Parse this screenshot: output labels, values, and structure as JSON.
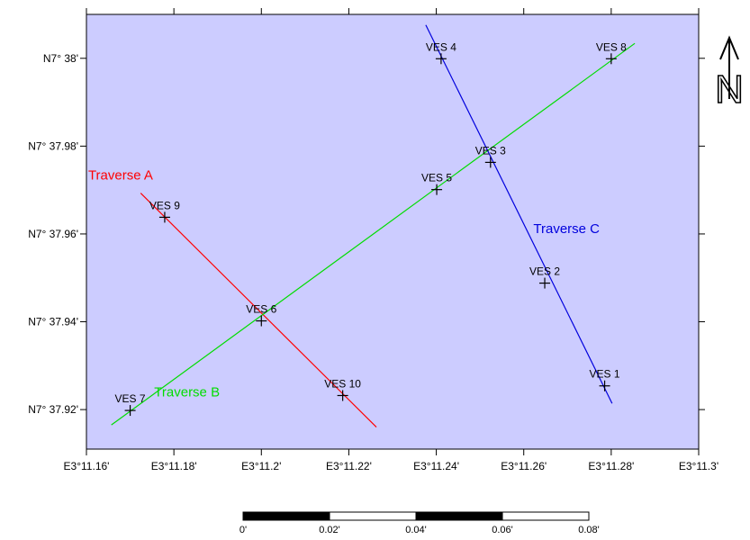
{
  "map": {
    "background_color": "#ccccff",
    "x_axis": {
      "ticks": [
        {
          "value": 11.16,
          "label": "E3°11.16'"
        },
        {
          "value": 11.18,
          "label": "E3°11.18'"
        },
        {
          "value": 11.2,
          "label": "E3°11.2'"
        },
        {
          "value": 11.22,
          "label": "E3°11.22'"
        },
        {
          "value": 11.24,
          "label": "E3°11.24'"
        },
        {
          "value": 11.26,
          "label": "E3°11.26'"
        },
        {
          "value": 11.28,
          "label": "E3°11.28'"
        },
        {
          "value": 11.3,
          "label": "E3°11.3'"
        }
      ],
      "range": [
        11.16,
        11.3
      ]
    },
    "y_axis": {
      "ticks": [
        {
          "value": 37.92,
          "label": "N7° 37.92'"
        },
        {
          "value": 37.94,
          "label": "N7° 37.94'"
        },
        {
          "value": 37.96,
          "label": "N7° 37.96'"
        },
        {
          "value": 37.98,
          "label": "N7° 37.98'"
        },
        {
          "value": 38.0,
          "label": "N7° 38'"
        }
      ],
      "range": [
        37.911,
        38.01
      ]
    },
    "stations": [
      {
        "label": "VES 1",
        "lon": 11.2785,
        "lat": 37.9254
      },
      {
        "label": "VES 2",
        "lon": 11.2648,
        "lat": 37.9488
      },
      {
        "label": "VES 3",
        "lon": 11.2524,
        "lat": 37.9763
      },
      {
        "label": "VES 4",
        "lon": 11.2411,
        "lat": 37.9999
      },
      {
        "label": "VES 5",
        "lon": 11.2401,
        "lat": 37.9701
      },
      {
        "label": "VES 6",
        "lon": 11.2,
        "lat": 37.9402
      },
      {
        "label": "VES 7",
        "lon": 11.17,
        "lat": 37.9198
      },
      {
        "label": "VES 8",
        "lon": 11.28,
        "lat": 37.9999
      },
      {
        "label": "VES 9",
        "lon": 11.1779,
        "lat": 37.9638
      },
      {
        "label": "VES 10",
        "lon": 11.2186,
        "lat": 37.9232
      }
    ],
    "traverses": [
      {
        "label": "Traverse A",
        "color": "#ff0000",
        "points": [
          [
            11.1724,
            37.9693
          ],
          [
            11.2263,
            37.916
          ]
        ],
        "label_at": [
          11.1604,
          37.9724
        ]
      },
      {
        "label": "Traverse B",
        "color": "#00dd00",
        "points": [
          [
            11.1657,
            37.9165
          ],
          [
            11.2854,
            38.0034
          ]
        ],
        "label_at": [
          11.1755,
          37.923
        ]
      },
      {
        "label": "Traverse C",
        "color": "#0000dd",
        "points": [
          [
            11.2376,
            38.0076
          ],
          [
            11.2802,
            37.9214
          ]
        ],
        "label_at": [
          11.2622,
          37.9602
        ]
      }
    ],
    "north_arrow": {
      "label": "N"
    }
  },
  "scale_bar": {
    "labels": [
      "0'",
      "0.02'",
      "0.04'",
      "0.06'",
      "0.08'"
    ]
  }
}
